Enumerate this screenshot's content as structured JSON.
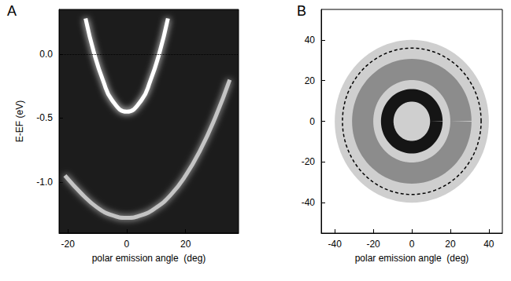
{
  "chart_data": [
    {
      "type": "line",
      "title": "A",
      "x_label": "polar emission angle  (deg)",
      "y_label": "E-EF (eV)",
      "xlim": [
        -23,
        38
      ],
      "xticks": [
        -20,
        0,
        20
      ],
      "ylim": [
        -1.4,
        0.35
      ],
      "yticks": [
        {
          "value": -1.0,
          "label": "-1.0"
        },
        {
          "value": -0.5,
          "label": "-0.5"
        },
        {
          "value": 0,
          "label": "0.0"
        }
      ],
      "reference_lines": [
        {
          "y": 0,
          "line_style": "dotted"
        }
      ],
      "grid": false,
      "series": [
        {
          "color": "#ffffff",
          "x": [
            -14,
            -11,
            -8,
            -5,
            0,
            5,
            8,
            11,
            14
          ],
          "values": [
            0.28,
            0.0,
            -0.21,
            -0.36,
            -0.45,
            -0.36,
            -0.21,
            0.0,
            0.28
          ]
        },
        {
          "color": "#c4c4c4",
          "x": [
            -21,
            -15,
            -10,
            -5,
            0,
            5,
            10,
            15,
            20,
            25,
            30,
            35
          ],
          "values": [
            -0.95,
            -1.1,
            -1.2,
            -1.26,
            -1.28,
            -1.26,
            -1.2,
            -1.1,
            -0.95,
            -0.75,
            -0.5,
            -0.2
          ]
        }
      ]
    },
    {
      "type": "rings",
      "title": "B",
      "x_label": "polar emission angle  (deg)",
      "xlim": [
        -47,
        47
      ],
      "xticks": [
        -40,
        -20,
        0,
        20,
        40
      ],
      "ylim": [
        -55,
        55
      ],
      "yticks": [
        -40,
        -20,
        0,
        20,
        40
      ],
      "grid": false,
      "rings": [
        {
          "inner": 0,
          "outer": 40,
          "color": "#cfcfcf"
        },
        {
          "inner": 20,
          "outer": 31,
          "color": "#8c8c8c"
        },
        {
          "inner": 9.5,
          "outer": 16,
          "color": "#151515"
        }
      ],
      "circles": [
        {
          "radius": 36,
          "color": "#000000",
          "line_style": "dashed"
        }
      ]
    }
  ]
}
